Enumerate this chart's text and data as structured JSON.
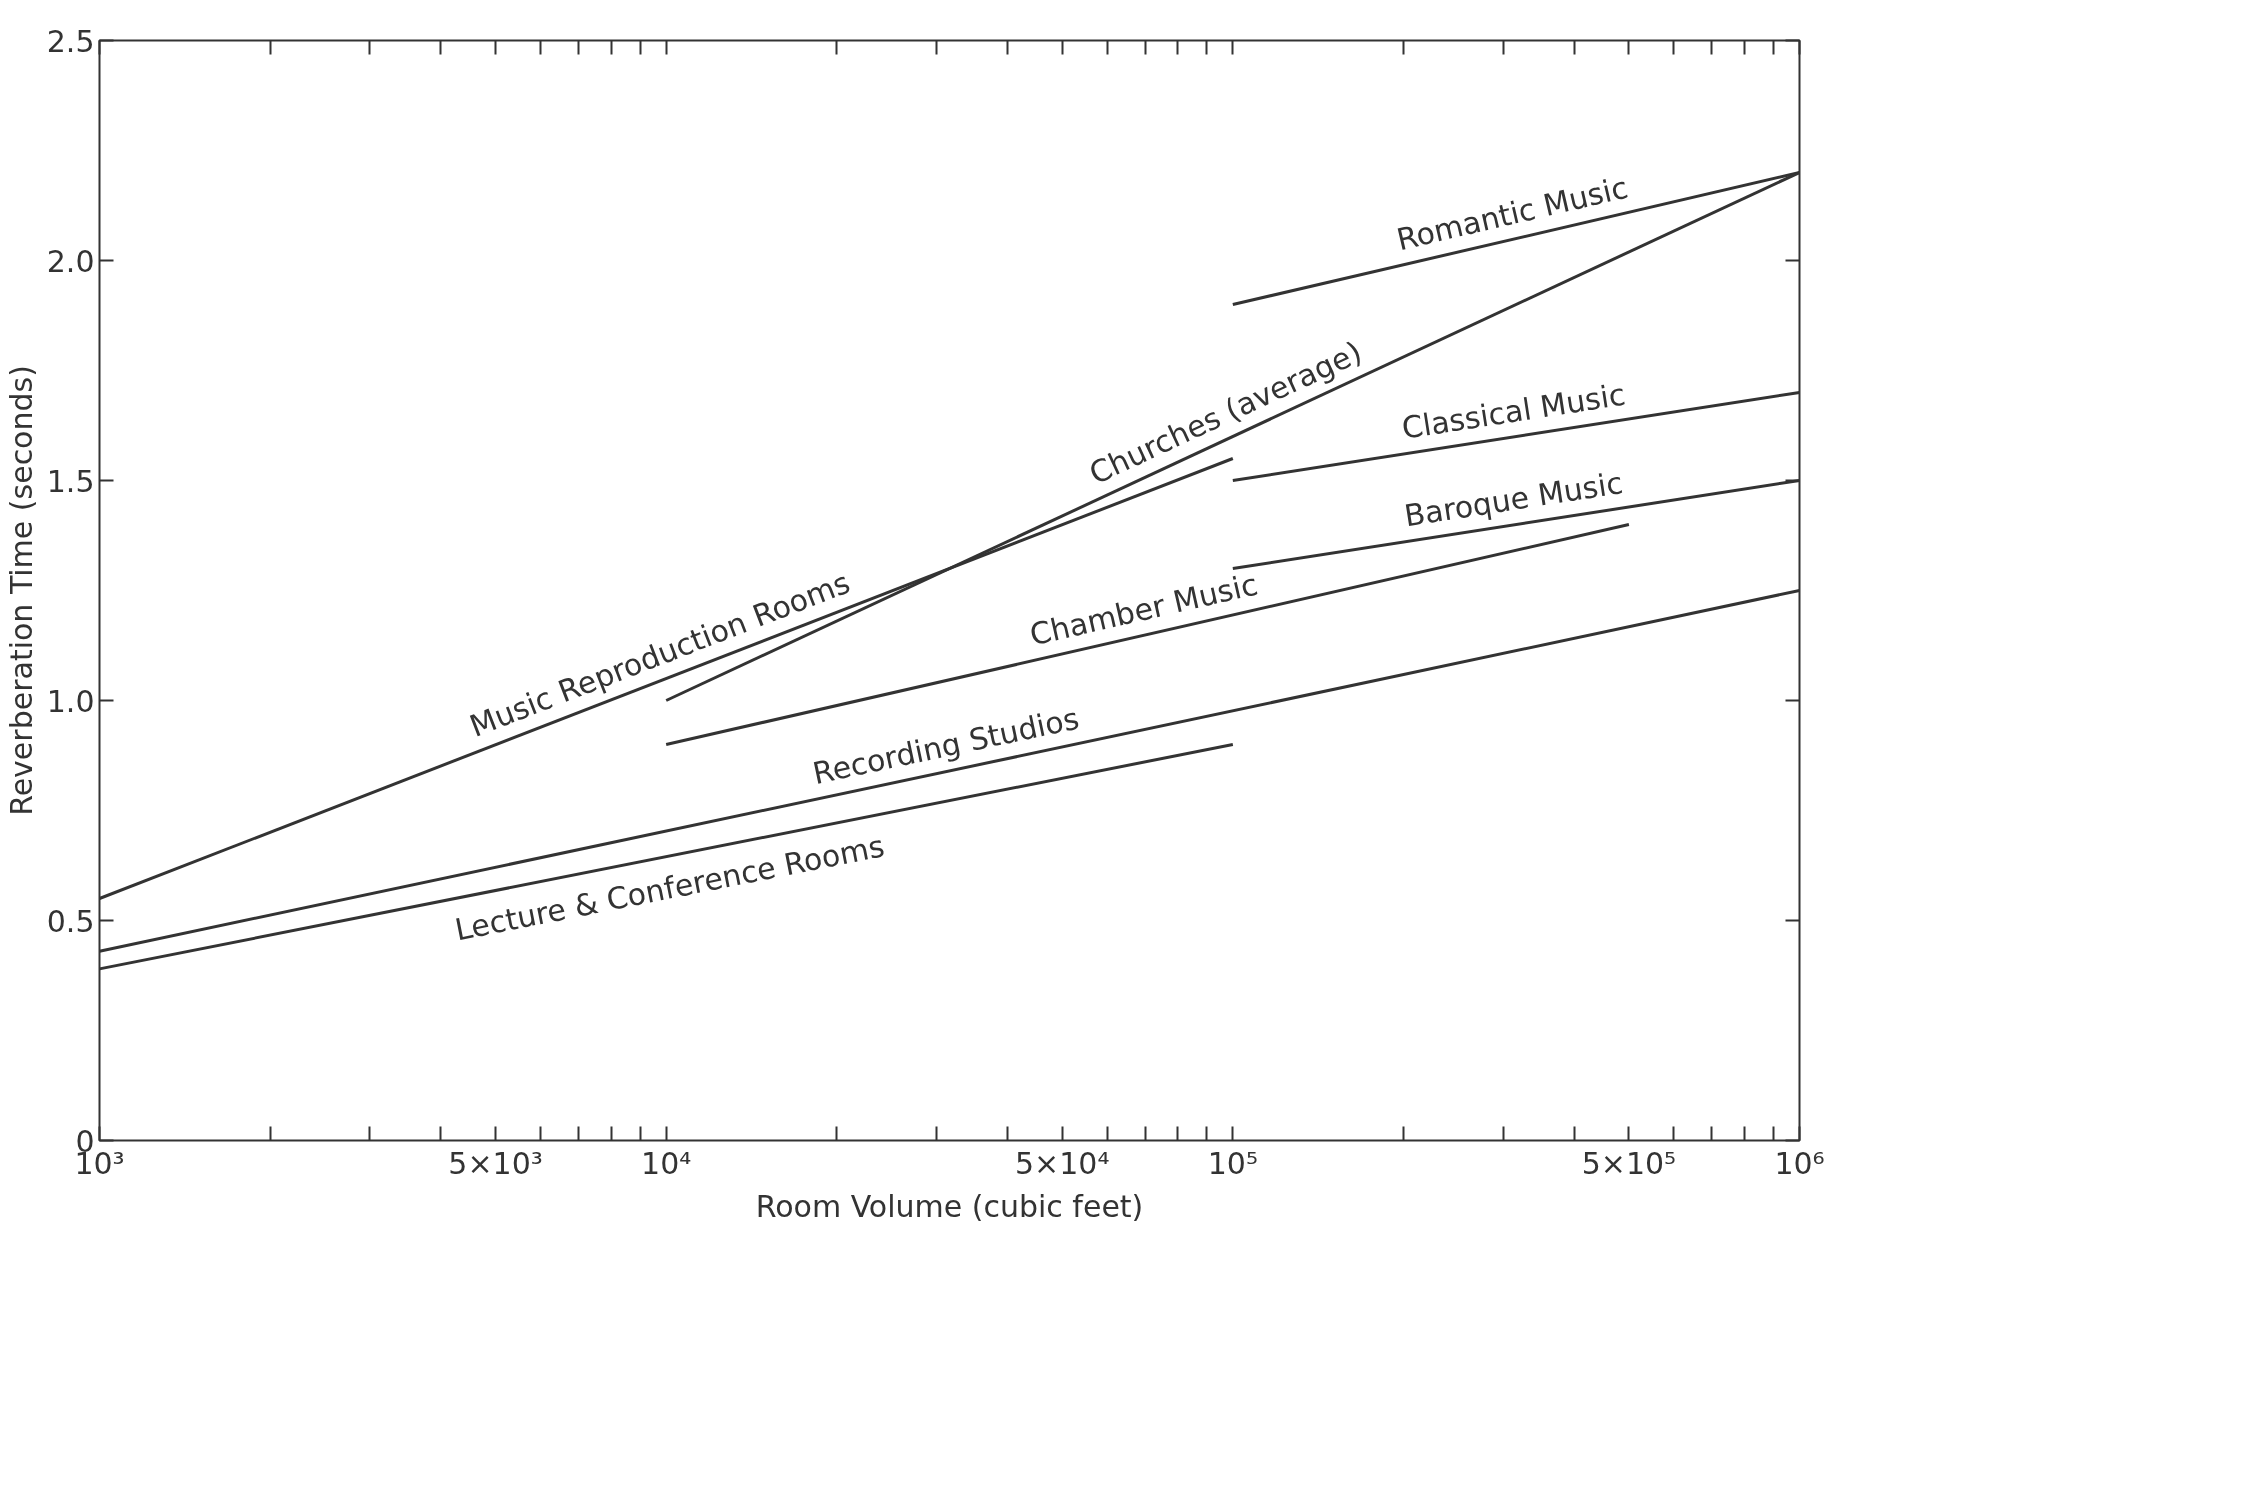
{
  "chart_data": {
    "type": "line",
    "xlabel": "Room Volume (cubic feet)",
    "ylabel": "Reverberation Time (seconds)",
    "log": "x",
    "grid": false,
    "marker": "none",
    "line_style": "solid",
    "xlim": [
      1000,
      1000000
    ],
    "ylim": [
      0,
      2.5
    ],
    "xticks": [
      {
        "value": 1000,
        "label": "10³"
      },
      {
        "value": 2000,
        "label": null
      },
      {
        "value": 3000,
        "label": null
      },
      {
        "value": 4000,
        "label": null
      },
      {
        "value": 5000,
        "label": "5×10³"
      },
      {
        "value": 6000,
        "label": null
      },
      {
        "value": 7000,
        "label": null
      },
      {
        "value": 8000,
        "label": null
      },
      {
        "value": 9000,
        "label": null
      },
      {
        "value": 10000,
        "label": "10⁴"
      },
      {
        "value": 20000,
        "label": null
      },
      {
        "value": 30000,
        "label": null
      },
      {
        "value": 40000,
        "label": null
      },
      {
        "value": 50000,
        "label": "5×10⁴"
      },
      {
        "value": 60000,
        "label": null
      },
      {
        "value": 70000,
        "label": null
      },
      {
        "value": 80000,
        "label": null
      },
      {
        "value": 90000,
        "label": null
      },
      {
        "value": 100000,
        "label": "10⁵"
      },
      {
        "value": 200000,
        "label": null
      },
      {
        "value": 300000,
        "label": null
      },
      {
        "value": 400000,
        "label": null
      },
      {
        "value": 500000,
        "label": "5×10⁵"
      },
      {
        "value": 600000,
        "label": null
      },
      {
        "value": 700000,
        "label": null
      },
      {
        "value": 800000,
        "label": null
      },
      {
        "value": 900000,
        "label": null
      },
      {
        "value": 1000000,
        "label": "10⁶"
      }
    ],
    "yticks": [
      0,
      {
        "value": 0.5,
        "label": "0.5"
      },
      {
        "value": 1.0,
        "label": "1.0"
      },
      {
        "value": 1.5,
        "label": "1.5"
      },
      {
        "value": 2.0,
        "label": "2.0"
      },
      {
        "value": 2.5,
        "label": "2.5"
      }
    ],
    "series": [
      {
        "name": "Romantic Music",
        "color": "#333333",
        "x": [
          100000,
          1000000
        ],
        "values": [
          1.9,
          2.2
        ]
      },
      {
        "name": "Churches (average)",
        "color": "#333333",
        "x": [
          10000,
          1000000
        ],
        "values": [
          1.0,
          2.2
        ]
      },
      {
        "name": "Classical Music",
        "color": "#333333",
        "x": [
          100000,
          1000000
        ],
        "values": [
          1.5,
          1.7
        ]
      },
      {
        "name": "Baroque Music",
        "color": "#333333",
        "x": [
          100000,
          1000000
        ],
        "values": [
          1.3,
          1.5
        ]
      },
      {
        "name": "Music Reproduction Rooms",
        "color": "#333333",
        "x": [
          1000,
          100000
        ],
        "values": [
          0.55,
          1.55
        ]
      },
      {
        "name": "Chamber Music",
        "color": "#333333",
        "x": [
          10000,
          500000
        ],
        "values": [
          0.9,
          1.4
        ]
      },
      {
        "name": "Recording Studios",
        "color": "#333333",
        "x": [
          1000,
          1000000
        ],
        "values": [
          0.43,
          1.25
        ]
      },
      {
        "name": "Lecture & Conference Rooms",
        "color": "#333333",
        "x": [
          1000,
          100000
        ],
        "values": [
          0.39,
          0.9
        ]
      }
    ]
  }
}
